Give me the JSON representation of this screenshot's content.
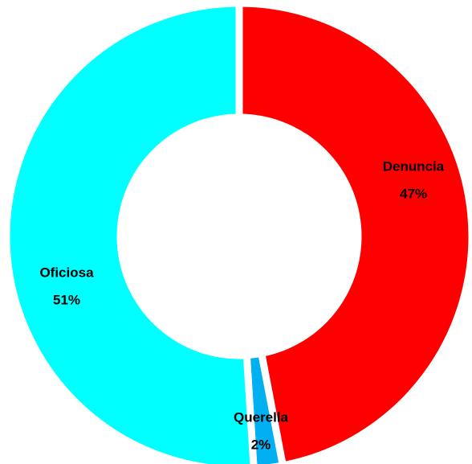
{
  "chart_data": {
    "type": "donut",
    "categories": [
      "Denuncia",
      "Querella",
      "Oficiosa"
    ],
    "values": [
      47,
      2,
      51
    ],
    "value_labels": [
      "47%",
      "2%",
      "51%"
    ],
    "colors": [
      "#ff0000",
      "#00b0f0",
      "#00ffff"
    ]
  }
}
